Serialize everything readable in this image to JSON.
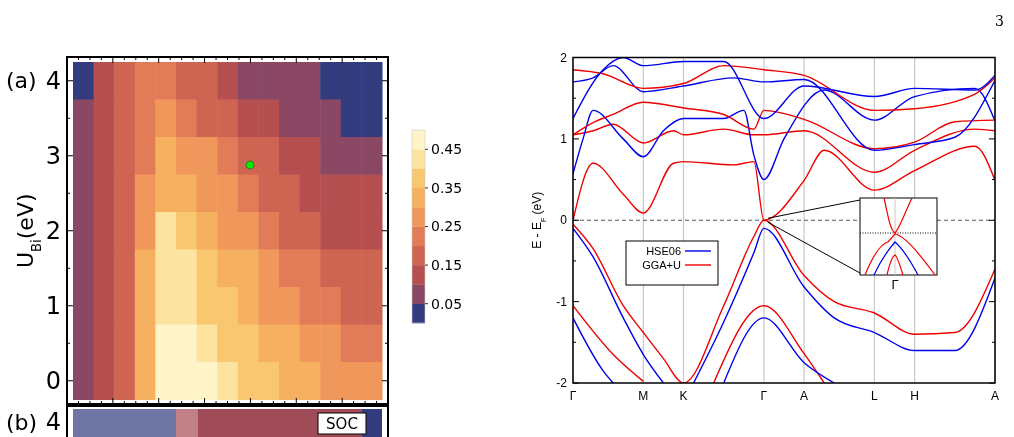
{
  "chart_data": [
    {
      "type": "heatmap",
      "title": "(a)",
      "ylabel": "U$_{Bi}$(eV)",
      "categories": [
        null,
        null,
        null,
        null,
        null,
        null,
        null,
        null,
        null,
        null,
        null,
        null,
        null,
        null,
        null
      ],
      "y_categories": [
        "4",
        null,
        "3",
        null,
        "2",
        null,
        "1",
        null,
        "0"
      ],
      "cells": [
        [
          0.025,
          0.125,
          0.175,
          0.225,
          0.225,
          0.175,
          0.175,
          0.125,
          0.075,
          0.075,
          0.075,
          0.075,
          0.025,
          0.025,
          0.025
        ],
        [
          0.075,
          0.125,
          0.175,
          0.225,
          0.275,
          0.225,
          0.175,
          0.175,
          0.125,
          0.125,
          0.075,
          0.075,
          0.075,
          0.025,
          0.025
        ],
        [
          0.075,
          0.125,
          0.175,
          0.225,
          0.325,
          0.275,
          0.275,
          0.225,
          0.175,
          0.175,
          0.125,
          0.125,
          0.075,
          0.075,
          0.075
        ],
        [
          0.075,
          0.125,
          0.175,
          0.275,
          0.325,
          0.325,
          0.275,
          0.275,
          0.225,
          0.175,
          0.175,
          0.125,
          0.125,
          0.125,
          0.125
        ],
        [
          0.075,
          0.125,
          0.175,
          0.275,
          0.425,
          0.375,
          0.325,
          0.275,
          0.275,
          0.225,
          0.175,
          0.175,
          0.125,
          0.125,
          0.125
        ],
        [
          0.075,
          0.125,
          0.175,
          0.325,
          0.425,
          0.425,
          0.375,
          0.325,
          0.325,
          0.275,
          0.225,
          0.225,
          0.175,
          0.175,
          0.175
        ],
        [
          0.075,
          0.125,
          0.175,
          0.325,
          0.425,
          0.425,
          0.375,
          0.375,
          0.325,
          0.275,
          0.275,
          0.225,
          0.225,
          0.175,
          0.175
        ],
        [
          0.075,
          0.125,
          0.175,
          0.325,
          0.475,
          0.475,
          0.425,
          0.375,
          0.375,
          0.325,
          0.325,
          0.275,
          0.275,
          0.225,
          0.225
        ],
        [
          0.075,
          0.125,
          0.175,
          0.325,
          0.475,
          0.475,
          0.475,
          0.425,
          0.375,
          0.375,
          0.325,
          0.325,
          0.275,
          0.275,
          0.275
        ]
      ],
      "clim": [
        0,
        0.5
      ],
      "cticks": [
        0.05,
        0.15,
        0.25,
        0.35,
        0.45
      ]
    },
    {
      "type": "other",
      "title": "(b)",
      "annotations": [
        "4",
        "SOC"
      ]
    },
    {
      "type": "line",
      "ylabel": "E - E$_{F}$ (eV)",
      "ylim": [
        -2,
        2
      ],
      "categories": [
        "Γ",
        null,
        null,
        null,
        null,
        null,
        null,
        "M",
        null,
        null,
        null,
        "K",
        null,
        null,
        null,
        null,
        null,
        null,
        null,
        "Γ",
        null,
        null,
        null,
        "A",
        null,
        null,
        null,
        null,
        null,
        null,
        "L",
        null,
        null,
        null,
        "H",
        null,
        null,
        null,
        null,
        null,
        null,
        null,
        "A"
      ],
      "yticks": [
        -2,
        {
          "value": -1.5,
          "label": null
        },
        -1,
        {
          "value": -0.5,
          "label": null
        },
        0,
        {
          "value": 0.5,
          "label": null
        },
        1,
        {
          "value": 1.5,
          "label": null
        },
        2
      ],
      "grid": "x",
      "legend": "left",
      "line_style": "solid",
      "marker": "none",
      "ref_lines": [
        {
          "axis": "y",
          "value": 0,
          "color": "#555555",
          "line_style": "dashed"
        }
      ],
      "annotations": [
        "Γ",
        "3"
      ],
      "series": [
        {
          "name": "HSE06",
          "color": "#0000ee",
          "values": [
            -0.1,
            null,
            -0.45,
            null,
            null,
            -1.2,
            null,
            -1.65,
            null,
            -2.0,
            null,
            null,
            null,
            null,
            null,
            null,
            null,
            null,
            null,
            null,
            null,
            null,
            null,
            null,
            null,
            null,
            null,
            null,
            null,
            null,
            null,
            null,
            null,
            null,
            null,
            null,
            null,
            null,
            null,
            null,
            null,
            null,
            null
          ]
        },
        {
          "color": "#0000ee",
          "values": [
            null,
            null,
            null,
            null,
            null,
            null,
            null,
            null,
            null,
            null,
            null,
            null,
            -2.0,
            null,
            null,
            -1.25,
            null,
            null,
            -0.4,
            -0.1,
            null,
            null,
            null,
            -0.82,
            null,
            null,
            -1.2,
            null,
            null,
            null,
            -1.38,
            null,
            null,
            null,
            -1.6,
            null,
            null,
            null,
            -1.6,
            null,
            null,
            null,
            -0.71
          ]
        },
        {
          "name": "GGA+U",
          "color": "#ee0000",
          "values": [
            0,
            null,
            0.7,
            null,
            null,
            0.32,
            null,
            0.09,
            null,
            null,
            0.7,
            0.72,
            null,
            null,
            null,
            null,
            0.68,
            null,
            0.72,
            0,
            null,
            null,
            null,
            0.49,
            null,
            0.86,
            null,
            null,
            null,
            null,
            0.37,
            null,
            null,
            null,
            0.61,
            null,
            null,
            null,
            null,
            null,
            0.91,
            null,
            0.49
          ]
        },
        {
          "color": "#ee0000",
          "values": [
            -0.05,
            null,
            -0.35,
            null,
            null,
            -1.05,
            null,
            -1.38,
            null,
            -1.7,
            null,
            -2.0,
            null,
            null,
            null,
            -1.05,
            null,
            null,
            -0.2,
            0,
            null,
            null,
            null,
            -0.68,
            null,
            null,
            -1.0,
            null,
            null,
            null,
            -1.14,
            null,
            null,
            null,
            -1.4,
            null,
            null,
            null,
            -1.38,
            null,
            null,
            null,
            -0.6
          ]
        },
        {
          "color": "#ee0000",
          "values": [
            -1.05,
            null,
            null,
            null,
            -1.65,
            null,
            null,
            -1.98,
            null,
            null,
            null,
            null,
            null,
            null,
            null,
            null,
            null,
            null,
            null,
            null,
            null,
            null,
            null,
            null,
            null,
            null,
            null,
            null,
            null,
            null,
            null,
            null,
            null,
            null,
            null,
            null,
            null,
            null,
            null,
            null,
            null,
            null,
            null
          ]
        },
        {
          "color": "#ee0000",
          "values": [
            null,
            null,
            null,
            null,
            null,
            null,
            null,
            null,
            null,
            null,
            null,
            null,
            null,
            null,
            -2.0,
            null,
            null,
            null,
            null,
            -1.05,
            null,
            null,
            null,
            -1.64,
            null,
            -2.0,
            null,
            null,
            null,
            null,
            null,
            null,
            null,
            null,
            null,
            null,
            null,
            null,
            null,
            null,
            null,
            null,
            null
          ]
        },
        {
          "color": "#0000ee",
          "values": [
            -1.2,
            null,
            null,
            -1.85,
            -2.0,
            null,
            null,
            null,
            null,
            null,
            null,
            null,
            null,
            null,
            null,
            null,
            null,
            null,
            null,
            null,
            null,
            null,
            null,
            null,
            null,
            null,
            null,
            null,
            null,
            null,
            null,
            null,
            null,
            null,
            null,
            null,
            null,
            null,
            null,
            null,
            null,
            null,
            null
          ]
        },
        {
          "color": "#0000ee",
          "values": [
            null,
            null,
            null,
            null,
            null,
            null,
            null,
            null,
            null,
            null,
            null,
            null,
            null,
            null,
            null,
            -2.0,
            null,
            null,
            null,
            -1.2,
            null,
            null,
            null,
            -1.75,
            null,
            null,
            -2.0,
            null,
            null,
            null,
            null,
            null,
            null,
            null,
            null,
            null,
            null,
            null,
            null,
            null,
            null,
            null,
            null
          ]
        },
        {
          "color": "#ee0000",
          "values": [
            1.05,
            null,
            1.1,
            null,
            1.18,
            null,
            null,
            0.95,
            null,
            null,
            1.1,
            1.05,
            null,
            null,
            null,
            1.12,
            null,
            null,
            1.05,
            1.05,
            null,
            null,
            null,
            1.1,
            null,
            null,
            null,
            null,
            null,
            null,
            0.59,
            null,
            null,
            null,
            0.86,
            null,
            null,
            null,
            null,
            null,
            1.12,
            null,
            1.1
          ]
        },
        {
          "color": "#0000ee",
          "values": [
            0.57,
            1.0,
            1.35,
            null,
            null,
            1.0,
            null,
            0.78,
            null,
            1.1,
            null,
            1.25,
            null,
            null,
            null,
            1.25,
            null,
            1.35,
            0.8,
            0.5,
            null,
            1.0,
            null,
            null,
            null,
            1.6,
            null,
            null,
            null,
            null,
            1.23,
            null,
            null,
            null,
            1.52,
            null,
            null,
            null,
            null,
            null,
            1.62,
            null,
            1.22
          ]
        },
        {
          "color": "#ee0000",
          "values": [
            1.05,
            null,
            1.2,
            null,
            1.3,
            null,
            null,
            1.45,
            null,
            null,
            null,
            1.38,
            null,
            null,
            null,
            1.3,
            null,
            null,
            1.12,
            1.35,
            null,
            null,
            null,
            1.24,
            null,
            null,
            null,
            null,
            null,
            null,
            0.88,
            null,
            null,
            null,
            0.96,
            null,
            null,
            null,
            1.21,
            null,
            null,
            null,
            1.23
          ]
        },
        {
          "color": "#0000ee",
          "values": [
            1.7,
            null,
            1.75,
            null,
            1.9,
            null,
            null,
            1.58,
            null,
            null,
            null,
            1.65,
            null,
            null,
            null,
            null,
            1.75,
            null,
            null,
            1.7,
            null,
            null,
            null,
            1.73,
            null,
            null,
            null,
            null,
            null,
            null,
            0.86,
            null,
            null,
            null,
            0.93,
            null,
            null,
            null,
            1.02,
            null,
            null,
            null,
            1.72
          ]
        },
        {
          "color": "#ee0000",
          "values": [
            1.85,
            null,
            null,
            1.8,
            null,
            null,
            null,
            1.62,
            null,
            null,
            null,
            1.68,
            null,
            null,
            null,
            1.9,
            null,
            null,
            null,
            1.85,
            null,
            null,
            null,
            1.78,
            null,
            null,
            null,
            null,
            null,
            null,
            1.35,
            null,
            null,
            null,
            1.37,
            null,
            null,
            null,
            null,
            null,
            1.55,
            null,
            1.75
          ]
        },
        {
          "color": "#0000ee",
          "values": [
            1.25,
            null,
            null,
            1.85,
            null,
            2.0,
            null,
            1.9,
            null,
            null,
            null,
            1.95,
            null,
            null,
            null,
            1.95,
            null,
            null,
            null,
            1.25,
            null,
            null,
            null,
            1.65,
            null,
            null,
            null,
            null,
            null,
            null,
            1.52,
            null,
            null,
            null,
            1.62,
            null,
            null,
            null,
            null,
            null,
            1.6,
            null,
            1.78
          ]
        }
      ]
    }
  ]
}
